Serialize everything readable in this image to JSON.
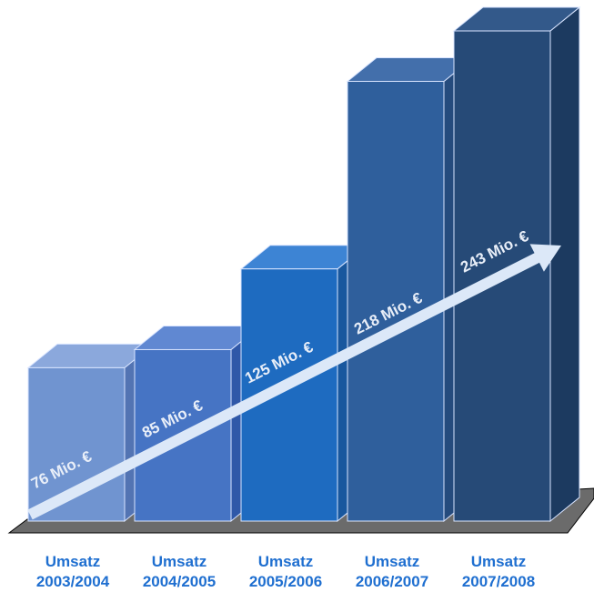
{
  "chart_data": {
    "type": "bar",
    "style": "3d-columns-with-trend-arrow",
    "categories": [
      [
        "Umsatz",
        "2003/2004"
      ],
      [
        "Umsatz",
        "2004/2005"
      ],
      [
        "Umsatz",
        "2005/2006"
      ],
      [
        "Umsatz",
        "2006/2007"
      ],
      [
        "Umsatz",
        "2007/2008"
      ]
    ],
    "values": [
      76,
      85,
      125,
      218,
      243
    ],
    "value_labels": [
      "76 Mio. €",
      "85 Mio. €",
      "125 Mio. €",
      "218 Mio. €",
      "243 Mio. €"
    ],
    "unit": "Mio. €",
    "ylim": [
      0,
      243
    ],
    "grid": false,
    "legend": "none",
    "colors": {
      "bars_front": [
        "#7094d0",
        "#4674c4",
        "#1e6bc0",
        "#2f5f9c",
        "#264a77"
      ],
      "bars_top": [
        "#8ba8dc",
        "#6088d2",
        "#3d84d4",
        "#436fab",
        "#33598a"
      ],
      "bars_side": [
        "#5374b3",
        "#2f58a8",
        "#18579e",
        "#254b7d",
        "#1c3a60"
      ],
      "bar_edge": "#d8e4ff",
      "floor": "#6b6b6b",
      "trend_arrow": "#dce8f8",
      "value_text": "#e8eef8",
      "category_text": "#1f6fd0"
    }
  }
}
